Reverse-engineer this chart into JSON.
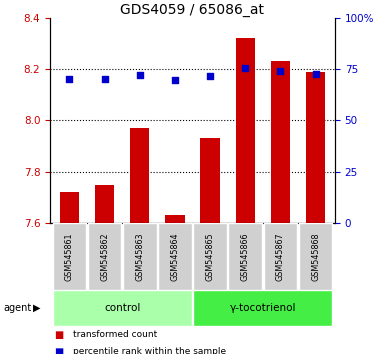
{
  "title": "GDS4059 / 65086_at",
  "samples": [
    "GSM545861",
    "GSM545862",
    "GSM545863",
    "GSM545864",
    "GSM545865",
    "GSM545866",
    "GSM545867",
    "GSM545868"
  ],
  "transformed_count": [
    7.72,
    7.75,
    7.97,
    7.63,
    7.93,
    8.32,
    8.23,
    8.19
  ],
  "percentile_rank": [
    70.0,
    70.0,
    72.0,
    69.5,
    71.5,
    75.5,
    74.0,
    72.5
  ],
  "ylim_left": [
    7.6,
    8.4
  ],
  "ylim_right": [
    0,
    100
  ],
  "yticks_left": [
    7.6,
    7.8,
    8.0,
    8.2,
    8.4
  ],
  "yticks_right": [
    0,
    25,
    50,
    75,
    100
  ],
  "ytick_labels_right": [
    "0",
    "25",
    "50",
    "75",
    "100%"
  ],
  "groups": [
    {
      "label": "control",
      "indices": [
        0,
        1,
        2,
        3
      ],
      "color": "#aaffaa"
    },
    {
      "label": "γ-tocotrienol",
      "indices": [
        4,
        5,
        6,
        7
      ],
      "color": "#44ee44"
    }
  ],
  "bar_color": "#cc0000",
  "dot_color": "#0000cc",
  "bar_width": 0.55,
  "grid_color": "#000000",
  "agent_label": "agent",
  "legend_items": [
    {
      "label": "transformed count",
      "color": "#cc0000"
    },
    {
      "label": "percentile rank within the sample",
      "color": "#0000cc"
    }
  ],
  "title_fontsize": 10,
  "tick_fontsize": 7.5,
  "label_fontsize": 7.5,
  "sample_fontsize": 5.8,
  "group_fontsize": 7.5
}
